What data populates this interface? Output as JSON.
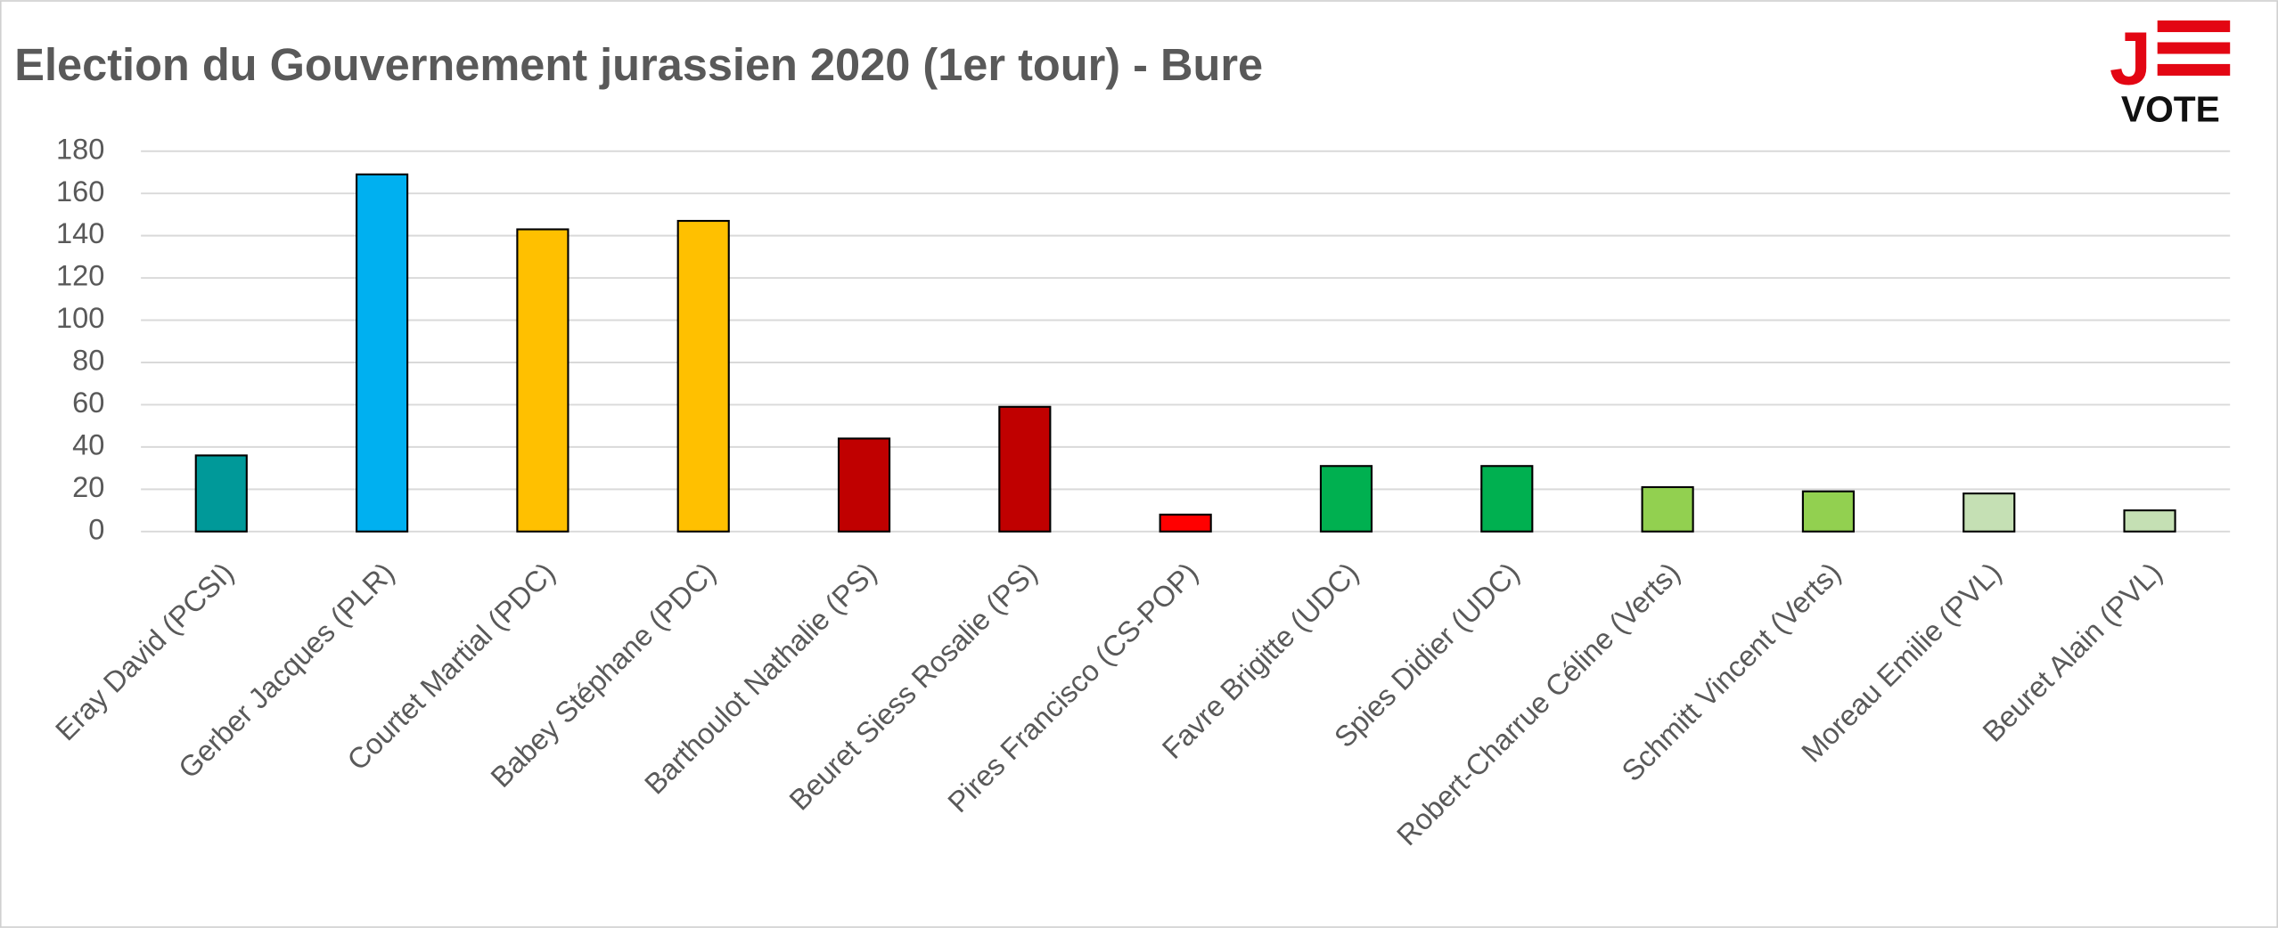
{
  "chart_data": {
    "type": "bar",
    "title": "Election du Gouvernement jurassien 2020 (1er tour) - Bure",
    "categories": [
      "Eray David (PCSI)",
      "Gerber Jacques (PLR)",
      "Courtet Martial (PDC)",
      "Babey Stéphane (PDC)",
      "Barthoulot Nathalie (PS)",
      "Beuret Siess Rosalie (PS)",
      "Pires Francisco (CS-POP)",
      "Favre Brigitte (UDC)",
      "Spies Didier (UDC)",
      "Robert-Charrue Céline (Verts)",
      "Schmitt Vincent (Verts)",
      "Moreau Emilie (PVL)",
      "Beuret Alain (PVL)"
    ],
    "values": [
      36,
      169,
      143,
      147,
      44,
      59,
      8,
      31,
      31,
      21,
      19,
      18,
      10
    ],
    "colors": [
      "#009999",
      "#00b0f0",
      "#ffc000",
      "#ffc000",
      "#c00000",
      "#c00000",
      "#ff0000",
      "#00b050",
      "#00b050",
      "#92d050",
      "#92d050",
      "#c5e0b4",
      "#c5e0b4"
    ],
    "ylim": [
      0,
      180
    ],
    "yticks": [
      0,
      20,
      40,
      60,
      80,
      100,
      120,
      140,
      160,
      180
    ],
    "grid": true
  },
  "logo": {
    "letter": "J",
    "word": "VOTE"
  }
}
